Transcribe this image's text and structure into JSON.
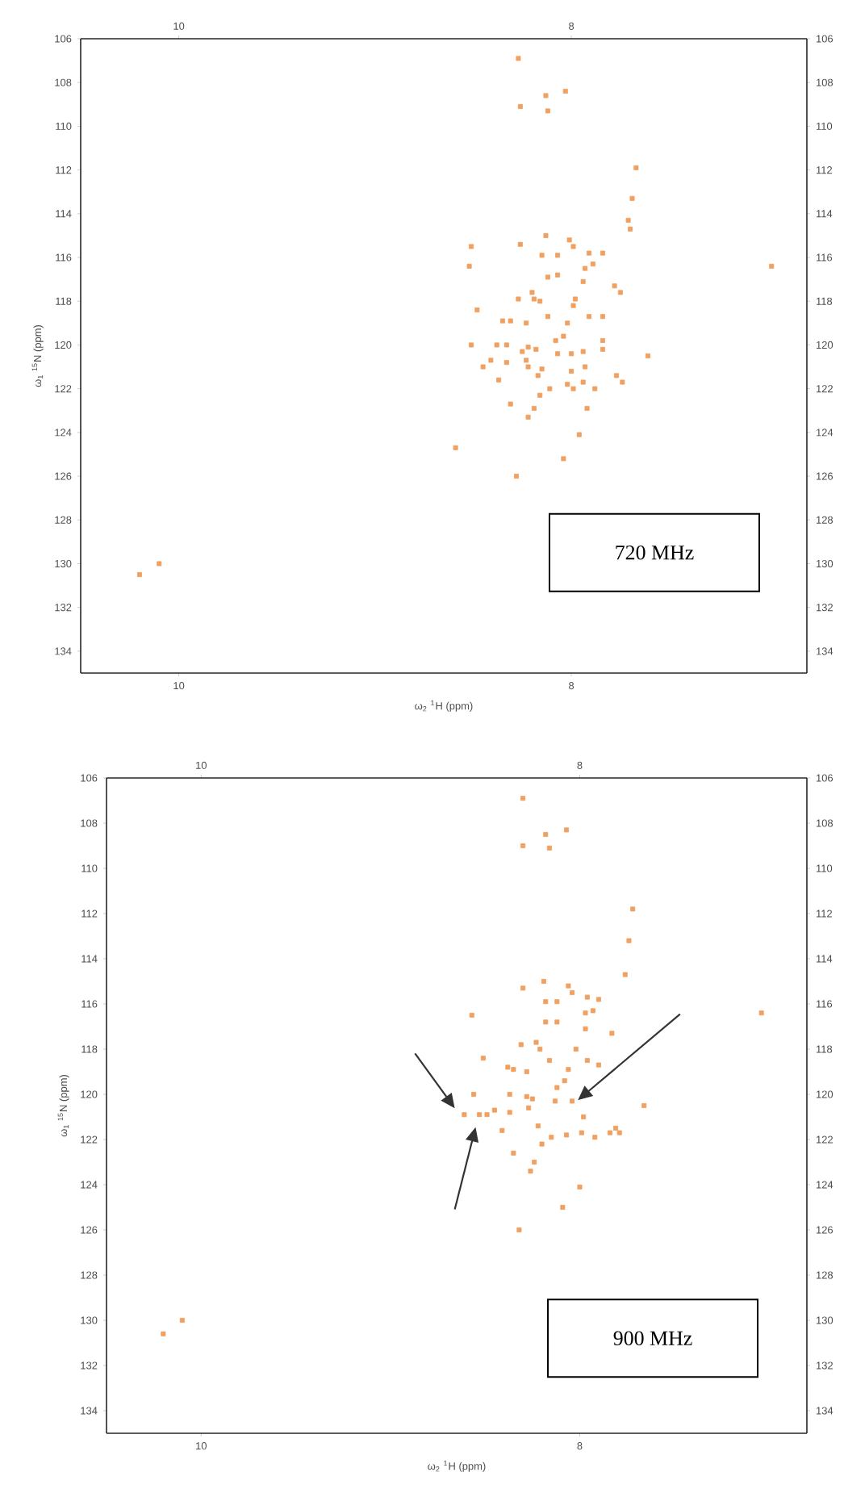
{
  "chart_data": [
    {
      "type": "scatter",
      "xlabel": "ω$_{2}$ $^{1}$H (ppm)",
      "ylabel": "ω$_{1}$ $^{15}$N (ppm)",
      "annotations": [
        "720 MHz"
      ],
      "marker": "square",
      "series": [
        {
          "color": "#f0a060",
          "x": [
            8.27,
            8.13,
            8.03,
            8.26,
            8.12,
            7.67,
            7.69,
            7.71,
            7.7,
            6.98,
            8.52,
            8.51,
            8.26,
            8.13,
            8.01,
            7.99,
            8.15,
            8.07,
            7.91,
            7.84,
            7.93,
            7.89,
            8.12,
            8.07,
            7.94,
            7.78,
            7.75,
            8.2,
            8.19,
            8.16,
            8.27,
            7.98,
            7.99,
            8.48,
            8.12,
            7.91,
            7.84,
            8.35,
            8.31,
            8.23,
            8.02,
            8.04,
            8.08,
            8.51,
            8.38,
            8.33,
            8.22,
            8.25,
            8.18,
            8.07,
            8.0,
            7.94,
            7.84,
            7.84,
            7.61,
            8.41,
            8.45,
            8.33,
            8.23,
            8.22,
            8.15,
            8.0,
            7.93,
            8.17,
            8.37,
            8.11,
            8.02,
            7.99,
            7.94,
            7.88,
            7.77,
            7.74,
            8.16,
            8.31,
            8.19,
            8.22,
            7.92,
            7.96,
            8.59,
            8.04,
            8.28,
            10.2,
            10.1
          ],
          "values": [
            106.9,
            108.6,
            108.4,
            109.1,
            109.3,
            111.9,
            113.3,
            114.3,
            114.7,
            116.4,
            116.4,
            115.5,
            115.4,
            115.0,
            115.2,
            115.5,
            115.9,
            115.9,
            115.8,
            115.8,
            116.5,
            116.3,
            116.9,
            116.8,
            117.1,
            117.3,
            117.6,
            117.6,
            117.9,
            118.0,
            117.9,
            117.9,
            118.2,
            118.4,
            118.7,
            118.7,
            118.7,
            118.9,
            118.9,
            119.0,
            119.0,
            119.6,
            119.8,
            120.0,
            120.0,
            120.0,
            120.1,
            120.3,
            120.2,
            120.4,
            120.4,
            120.3,
            119.8,
            120.2,
            120.5,
            120.7,
            121.0,
            120.8,
            120.7,
            121.0,
            121.1,
            121.2,
            121.0,
            121.4,
            121.6,
            122.0,
            121.8,
            122.0,
            121.7,
            122.0,
            121.4,
            121.7,
            122.3,
            122.7,
            122.9,
            123.3,
            122.9,
            124.1,
            124.7,
            125.2,
            126.0,
            130.5,
            130.0
          ]
        }
      ],
      "xlim": [
        10.5,
        6.8
      ],
      "ylim": [
        135,
        106
      ],
      "xticks": [
        10,
        8
      ],
      "yticks": [
        106,
        108,
        110,
        112,
        114,
        116,
        118,
        120,
        122,
        124,
        126,
        128,
        130,
        132,
        134
      ],
      "x2lim": [
        10.5,
        6.8
      ],
      "x2ticks": [
        10,
        8
      ],
      "y2lim": [
        135,
        106
      ],
      "y2ticks": [
        106,
        108,
        110,
        112,
        114,
        116,
        118,
        120,
        122,
        124,
        126,
        128,
        130,
        132,
        134
      ]
    },
    {
      "type": "scatter",
      "xlabel": "ω$_{2}$ $^{1}$H (ppm)",
      "ylabel": "ω$_{1}$ $^{15}$N (ppm)",
      "annotations": [
        "900 MHz"
      ],
      "marker": "square",
      "series": [
        {
          "color": "#f0a060",
          "x": [
            8.3,
            8.18,
            8.07,
            8.3,
            8.16,
            7.72,
            7.74,
            7.76,
            7.04,
            8.57,
            8.3,
            8.19,
            8.06,
            8.04,
            8.18,
            8.12,
            7.96,
            7.9,
            7.97,
            7.93,
            8.18,
            8.12,
            7.97,
            7.83,
            8.23,
            8.21,
            8.31,
            8.02,
            8.51,
            8.16,
            7.96,
            8.38,
            8.35,
            8.28,
            8.06,
            8.12,
            8.08,
            7.9,
            8.56,
            8.37,
            8.28,
            8.25,
            8.27,
            8.37,
            8.61,
            8.53,
            8.49,
            8.45,
            8.13,
            8.04,
            7.98,
            7.66,
            8.41,
            8.22,
            8.15,
            8.07,
            7.99,
            7.92,
            7.84,
            7.81,
            7.79,
            8.2,
            8.35,
            8.24,
            8.26,
            8.0,
            8.09,
            8.32,
            10.2,
            10.1
          ],
          "values": [
            106.9,
            108.5,
            108.3,
            109.0,
            109.1,
            111.8,
            113.2,
            114.7,
            116.4,
            116.5,
            115.3,
            115.0,
            115.2,
            115.5,
            115.9,
            115.9,
            115.7,
            115.8,
            116.4,
            116.3,
            116.8,
            116.8,
            117.1,
            117.3,
            117.7,
            118.0,
            117.8,
            118.0,
            118.4,
            118.5,
            118.5,
            118.8,
            118.9,
            119.0,
            118.9,
            119.7,
            119.4,
            118.7,
            120.0,
            120.0,
            120.1,
            120.2,
            120.6,
            120.8,
            120.9,
            120.9,
            120.9,
            120.7,
            120.3,
            120.3,
            121.0,
            120.5,
            121.6,
            121.4,
            121.9,
            121.8,
            121.7,
            121.9,
            121.7,
            121.5,
            121.7,
            122.2,
            122.6,
            123.0,
            123.4,
            124.1,
            125.0,
            126.0,
            130.6,
            130.0
          ]
        }
      ],
      "xlim": [
        10.5,
        6.8
      ],
      "ylim": [
        135,
        106
      ],
      "xticks": [
        10,
        8
      ],
      "yticks": [
        106,
        108,
        110,
        112,
        114,
        116,
        118,
        120,
        122,
        124,
        126,
        128,
        130,
        132,
        134
      ],
      "x2lim": [
        10.5,
        6.8
      ],
      "x2ticks": [
        10,
        8
      ],
      "y2lim": [
        135,
        106
      ],
      "y2ticks": [
        106,
        108,
        110,
        112,
        114,
        116,
        118,
        120,
        122,
        124,
        126,
        128,
        130,
        132,
        134
      ]
    }
  ]
}
